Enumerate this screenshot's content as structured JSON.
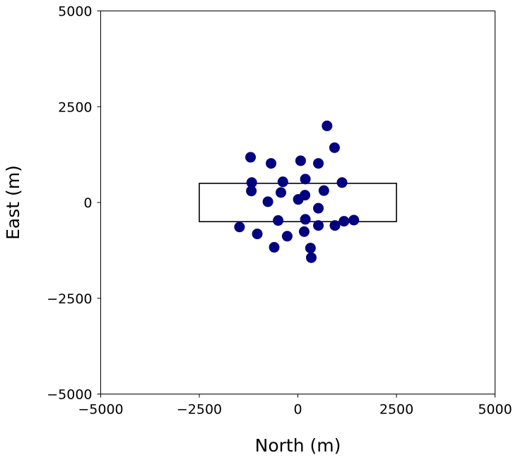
{
  "chart_data": {
    "type": "scatter",
    "title": "",
    "xlabel": "North (m)",
    "ylabel": "East (m)",
    "xlim": [
      -5000,
      5000
    ],
    "ylim": [
      -5000,
      5000
    ],
    "x_ticks": [
      -5000,
      -2500,
      0,
      2500,
      5000
    ],
    "y_ticks": [
      -5000,
      -2500,
      0,
      2500,
      5000
    ],
    "x_tick_labels": [
      "−5000",
      "−2500",
      "0",
      "2500",
      "5000"
    ],
    "y_tick_labels": [
      "−5000",
      "−2500",
      "0",
      "2500",
      "5000"
    ],
    "grid": false,
    "marker_color": "#000080",
    "rectangle": {
      "x0": -2500,
      "y0": -500,
      "x1": 2500,
      "y1": 500,
      "color": "#000000"
    },
    "points": [
      {
        "x": 740,
        "y": 2000
      },
      {
        "x": 930,
        "y": 1430
      },
      {
        "x": -1200,
        "y": 1180
      },
      {
        "x": 70,
        "y": 1090
      },
      {
        "x": -680,
        "y": 1020
      },
      {
        "x": 520,
        "y": 1020
      },
      {
        "x": 190,
        "y": 610
      },
      {
        "x": -1170,
        "y": 520
      },
      {
        "x": -380,
        "y": 540
      },
      {
        "x": 1120,
        "y": 520
      },
      {
        "x": -1180,
        "y": 300
      },
      {
        "x": -430,
        "y": 260
      },
      {
        "x": 660,
        "y": 310
      },
      {
        "x": 180,
        "y": 190
      },
      {
        "x": 10,
        "y": 80
      },
      {
        "x": -760,
        "y": 20
      },
      {
        "x": 520,
        "y": -150
      },
      {
        "x": 190,
        "y": -440
      },
      {
        "x": -500,
        "y": -470
      },
      {
        "x": 1170,
        "y": -490
      },
      {
        "x": 1420,
        "y": -460
      },
      {
        "x": 520,
        "y": -600
      },
      {
        "x": 940,
        "y": -600
      },
      {
        "x": -1480,
        "y": -640
      },
      {
        "x": 160,
        "y": -760
      },
      {
        "x": -1030,
        "y": -820
      },
      {
        "x": -270,
        "y": -880
      },
      {
        "x": -600,
        "y": -1170
      },
      {
        "x": 320,
        "y": -1190
      },
      {
        "x": 340,
        "y": -1440
      }
    ]
  }
}
